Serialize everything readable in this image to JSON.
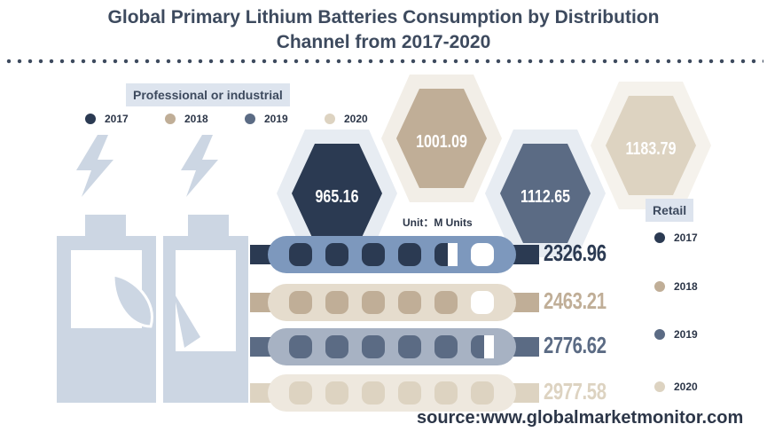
{
  "title_line1": "Global Primary Lithium Batteries Consumption by Distribution",
  "title_line2": "Channel from 2017-2020",
  "unit": "Unit：M Units",
  "source": "source:www.globalmarketmonitor.com",
  "colors": {
    "2017": "#2b3a52",
    "2018": "#c0ae97",
    "2019": "#5b6b84",
    "2020": "#ddd3c1"
  },
  "chart_data": [
    {
      "type": "hexagon",
      "panel_label": "Professional or industrial",
      "legend": [
        "2017",
        "2018",
        "2019",
        "2020"
      ],
      "categories": [
        "2017",
        "2018",
        "2019",
        "2020"
      ],
      "values": [
        965.16,
        1001.09,
        1112.65,
        1183.79
      ],
      "value_labels": [
        "965.16",
        "1001.09",
        "1112.65",
        "1183.79"
      ]
    },
    {
      "type": "bar",
      "panel_label": "Retail",
      "legend": [
        "2017",
        "2018",
        "2019",
        "2020"
      ],
      "categories": [
        "2017",
        "2018",
        "2019",
        "2020"
      ],
      "values": [
        2326.96,
        2463.21,
        2776.62,
        2977.58
      ],
      "value_labels": [
        "2326.96",
        "2463.21",
        "2776.62",
        "2977.58"
      ]
    }
  ]
}
